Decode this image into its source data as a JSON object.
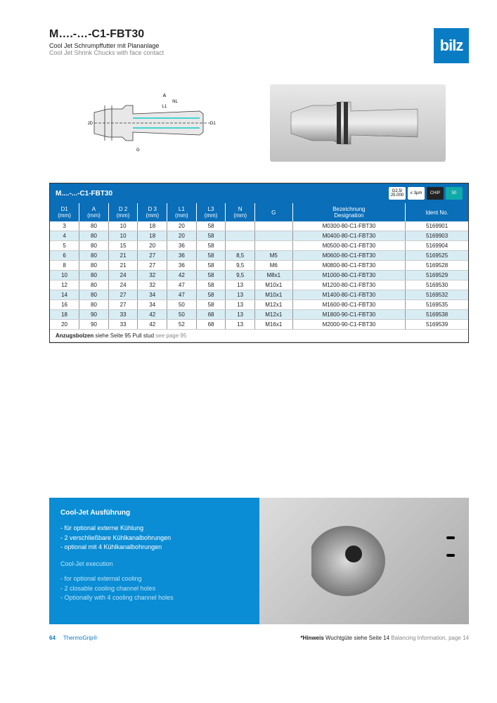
{
  "header": {
    "title": "M….-…-C1-FBT30",
    "subtitle_de": "Cool Jet Schrumpffutter mit Plananlage",
    "subtitle_en": "Cool Jet Shrink Chucks with face contact",
    "logo_text": "bilz",
    "logo_bg": "#0a7cc4"
  },
  "table": {
    "name": "M....-...-C1-FBT30",
    "header_bg": "#0a6eb8",
    "row_alt_bg": "#d8ecf4",
    "badges": [
      {
        "top": "G2,5/",
        "bot": "25.000",
        "bg": "#fff",
        "fg": "#000"
      },
      {
        "top": "",
        "bot": "≤ 3µm",
        "bg": "#fff",
        "fg": "#000"
      },
      {
        "top": "",
        "bot": "CHIP",
        "bg": "#222",
        "fg": "#fff"
      },
      {
        "top": "",
        "bot": "50",
        "bg": "#1aa",
        "fg": "#fff"
      }
    ],
    "columns": [
      {
        "h1": "D1",
        "h2": "(mm)",
        "cls": "col-d1"
      },
      {
        "h1": "A",
        "h2": "(mm)",
        "cls": "col-a"
      },
      {
        "h1": "D 2",
        "h2": "(mm)",
        "cls": "col-d2"
      },
      {
        "h1": "D 3",
        "h2": "(mm)",
        "cls": "col-d3"
      },
      {
        "h1": "L1",
        "h2": "(mm)",
        "cls": "col-l1"
      },
      {
        "h1": "L3",
        "h2": "(mm)",
        "cls": "col-l3"
      },
      {
        "h1": "N",
        "h2": "(mm)",
        "cls": "col-n"
      },
      {
        "h1": "G",
        "h2": "",
        "cls": "col-g"
      },
      {
        "h1": "Bezeichnung",
        "h2": "Designation",
        "cls": "col-des"
      },
      {
        "h1": "Ident No.",
        "h2": "",
        "cls": "col-id"
      }
    ],
    "rows": [
      [
        "3",
        "80",
        "10",
        "18",
        "20",
        "58",
        "",
        "",
        "M0300-80-C1-FBT30",
        "5169901"
      ],
      [
        "4",
        "80",
        "10",
        "18",
        "20",
        "58",
        "",
        "",
        "M0400-80-C1-FBT30",
        "5169903"
      ],
      [
        "5",
        "80",
        "15",
        "20",
        "36",
        "58",
        "",
        "",
        "M0500-80-C1-FBT30",
        "5169904"
      ],
      [
        "6",
        "80",
        "21",
        "27",
        "36",
        "58",
        "8,5",
        "M5",
        "M0600-80-C1-FBT30",
        "5169525"
      ],
      [
        "8",
        "80",
        "21",
        "27",
        "36",
        "58",
        "9,5",
        "M6",
        "M0800-80-C1-FBT30",
        "5169528"
      ],
      [
        "10",
        "80",
        "24",
        "32",
        "42",
        "58",
        "9,5",
        "M8x1",
        "M1000-80-C1-FBT30",
        "5169529"
      ],
      [
        "12",
        "80",
        "24",
        "32",
        "47",
        "58",
        "13",
        "M10x1",
        "M1200-80-C1-FBT30",
        "5169530"
      ],
      [
        "14",
        "80",
        "27",
        "34",
        "47",
        "58",
        "13",
        "M10x1",
        "M1400-80-C1-FBT30",
        "5169532"
      ],
      [
        "16",
        "80",
        "27",
        "34",
        "50",
        "58",
        "13",
        "M12x1",
        "M1600-80-C1-FBT30",
        "5169535"
      ],
      [
        "18",
        "90",
        "33",
        "42",
        "50",
        "68",
        "13",
        "M12x1",
        "M1800-90-C1-FBT30",
        "5169538"
      ],
      [
        "20",
        "90",
        "33",
        "42",
        "52",
        "68",
        "13",
        "M16x1",
        "M2000-90-C1-FBT30",
        "5169539"
      ]
    ],
    "footnote_bold": "Anzugsbolzen",
    "footnote_de": " siehe Seite 95 ",
    "footnote_en_label": "Pull stud",
    "footnote_en": " see page 95"
  },
  "info": {
    "bg": "#0a8dd4",
    "title_de": "Cool-Jet Ausführung",
    "lines_de": [
      "- für optional externe Kühlung",
      "- 2 verschließbare Kühlkanalbohrungen",
      "- optional mit 4 Kühlkanalbohrungen"
    ],
    "title_en": "Cool-Jet execution",
    "lines_en": [
      "- for optional external cooling",
      "- 2 closable cooling channel holes",
      "- Optionally with 4 cooling channel holes"
    ]
  },
  "footer": {
    "page_num": "64",
    "brand": "ThermoGrip®",
    "hint_bold": "*Hinweis",
    "hint_de": " Wuchtgüte siehe Seite 14",
    "hint_en": " Balancing Information, page 14"
  }
}
